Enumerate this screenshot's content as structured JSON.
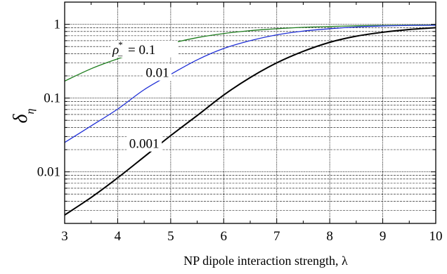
{
  "chart_data": {
    "type": "line",
    "xlabel": "NP dipole interaction strength, λ",
    "ylabel_main": "δ",
    "ylabel_sub": "η",
    "xlim": [
      3,
      10
    ],
    "ylim": [
      0.002,
      2
    ],
    "y_scale": "log",
    "grid": true,
    "x_ticks": [
      3,
      4,
      5,
      6,
      7,
      8,
      9,
      10
    ],
    "x_tick_labels": [
      "3",
      "4",
      "5",
      "6",
      "7",
      "8",
      "9",
      "10"
    ],
    "y_ticks": [
      0.01,
      0.1,
      1
    ],
    "y_tick_labels": [
      "0.01",
      "0.1",
      "1"
    ],
    "rho_symbol": "ρ",
    "rho_sup": "*",
    "rho_sub": "–",
    "series": [
      {
        "label": "= 0.1",
        "color": "#1e7d1e",
        "x": [
          3.0,
          3.5,
          4.0,
          4.5,
          5.0,
          5.5,
          6.0,
          6.5,
          7.0,
          7.5,
          8.0,
          8.5,
          9.0,
          9.5,
          10.0
        ],
        "y": [
          0.17,
          0.25,
          0.34,
          0.44,
          0.55,
          0.66,
          0.75,
          0.82,
          0.87,
          0.91,
          0.935,
          0.955,
          0.965,
          0.972,
          0.975
        ]
      },
      {
        "label": "0.01",
        "color": "#1f2fd6",
        "x": [
          3.0,
          3.5,
          4.0,
          4.5,
          5.0,
          5.5,
          6.0,
          6.5,
          7.0,
          7.5,
          8.0,
          8.5,
          9.0,
          9.5,
          10.0
        ],
        "y": [
          0.025,
          0.042,
          0.071,
          0.13,
          0.21,
          0.33,
          0.47,
          0.6,
          0.72,
          0.81,
          0.87,
          0.92,
          0.95,
          0.965,
          0.97
        ]
      },
      {
        "label": "0.001",
        "color": "#000000",
        "x": [
          3.0,
          3.5,
          4.0,
          4.5,
          5.0,
          5.5,
          6.0,
          6.5,
          7.0,
          7.5,
          8.0,
          8.5,
          9.0,
          9.5,
          10.0
        ],
        "y": [
          0.0026,
          0.0045,
          0.0083,
          0.016,
          0.031,
          0.058,
          0.11,
          0.19,
          0.3,
          0.43,
          0.57,
          0.69,
          0.78,
          0.85,
          0.9
        ]
      }
    ]
  }
}
